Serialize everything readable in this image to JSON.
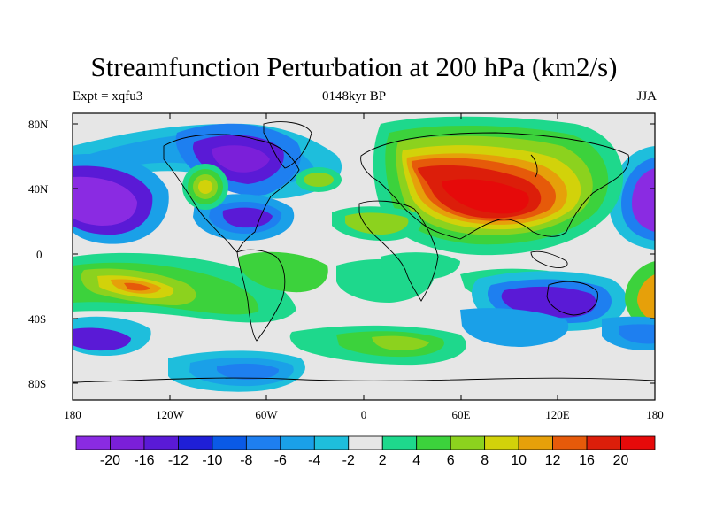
{
  "title": "Streamfunction Perturbation at 200 hPa (km2/s)",
  "subtitle_left": "Expt = xqfu3",
  "subtitle_center": "0148kyr BP",
  "subtitle_right": "JJA",
  "y_axis_labels": [
    "80N",
    "40N",
    "0",
    "40S",
    "80S"
  ],
  "x_axis_labels": [
    "180",
    "120W",
    "60W",
    "0",
    "60E",
    "120E",
    "180"
  ],
  "colorbar": {
    "levels": [
      "-20",
      "-16",
      "-12",
      "-10",
      "-8",
      "-6",
      "-4",
      "-2",
      "2",
      "4",
      "6",
      "8",
      "10",
      "12",
      "16",
      "20"
    ],
    "colors": [
      "#8a2be2",
      "#7b1fd9",
      "#5a1ad6",
      "#1f1fd6",
      "#0a5ae6",
      "#1e7ff0",
      "#1aa0e8",
      "#1ebedc",
      "#e6e6e6",
      "#1ed88c",
      "#3cd23c",
      "#8cd21e",
      "#d2d20a",
      "#e6a00a",
      "#e65a0a",
      "#dc1e0a",
      "#e60a0a"
    ]
  },
  "chart_data": {
    "type": "heatmap",
    "title": "Streamfunction Perturbation at 200 hPa (km2/s)",
    "variable": "Streamfunction perturbation",
    "units": "km2/s",
    "level": "200 hPa",
    "season": "JJA",
    "experiment": "xqfu3",
    "period": "0148kyr BP",
    "x_range": [
      -180,
      180
    ],
    "y_range": [
      -90,
      90
    ],
    "contour_levels": [
      -20,
      -16,
      -12,
      -10,
      -8,
      -6,
      -4,
      -2,
      2,
      4,
      6,
      8,
      10,
      12,
      16,
      20
    ]
  }
}
